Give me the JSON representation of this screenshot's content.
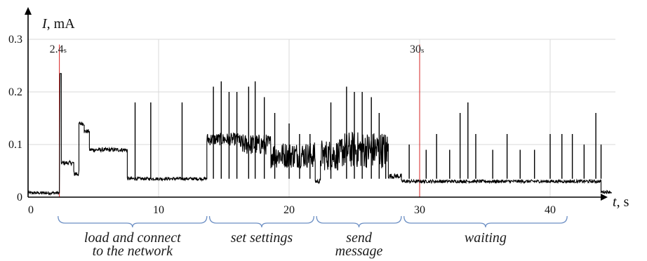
{
  "chart_data": {
    "type": "line",
    "title": "",
    "xlabel_var": "t",
    "xlabel_unit": ", s",
    "ylabel_var": "I",
    "ylabel_unit": ", mA",
    "xlim": [
      0,
      45
    ],
    "ylim": [
      0,
      0.3
    ],
    "x_ticks": [
      {
        "value": 0,
        "label": "0"
      },
      {
        "value": 10,
        "label": "10"
      },
      {
        "value": 20,
        "label": "20"
      },
      {
        "value": 30,
        "label": "30"
      },
      {
        "value": 40,
        "label": "40"
      }
    ],
    "y_ticks": [
      {
        "value": 0,
        "label": "0"
      },
      {
        "value": 0.1,
        "label": "0.1"
      },
      {
        "value": 0.2,
        "label": "0.2"
      },
      {
        "value": 0.3,
        "label": "0.3"
      }
    ],
    "grid": true,
    "markers": [
      {
        "x": 2.4,
        "num": "2.4",
        "unit": "s",
        "color": "#d62020"
      },
      {
        "x": 30,
        "num": "30",
        "unit": "s",
        "color": "#d62020"
      }
    ],
    "phases": [
      {
        "start": 2.3,
        "end": 13.7,
        "lines": [
          "load and connect",
          "to the network"
        ]
      },
      {
        "start": 13.9,
        "end": 21.9,
        "lines": [
          "set settings"
        ]
      },
      {
        "start": 22.1,
        "end": 28.6,
        "lines": [
          "send",
          "message"
        ]
      },
      {
        "start": 28.8,
        "end": 41.3,
        "lines": [
          "waiting"
        ]
      }
    ],
    "series": [
      {
        "line_color": "#000000",
        "segments": [
          {
            "x0": 0,
            "x1": 2.4,
            "base": 0.008,
            "noise": 0.003
          },
          {
            "x0": 2.45,
            "x1": 2.55,
            "base": 0.235,
            "noise": 0.0
          },
          {
            "x0": 2.55,
            "x1": 3.5,
            "base": 0.065,
            "noise": 0.004
          },
          {
            "x0": 3.5,
            "x1": 3.9,
            "base": 0.045,
            "noise": 0.006
          },
          {
            "x0": 3.9,
            "x1": 4.3,
            "base": 0.14,
            "noise": 0.004
          },
          {
            "x0": 4.3,
            "x1": 4.7,
            "base": 0.125,
            "noise": 0.004
          },
          {
            "x0": 4.7,
            "x1": 7.6,
            "base": 0.09,
            "noise": 0.004
          },
          {
            "x0": 7.6,
            "x1": 13.7,
            "base": 0.035,
            "noise": 0.003
          },
          {
            "x0": 13.7,
            "x1": 16.2,
            "base": 0.11,
            "noise": 0.012
          },
          {
            "x0": 16.2,
            "x1": 18.6,
            "base": 0.1,
            "noise": 0.02
          },
          {
            "x0": 18.6,
            "x1": 22.0,
            "base": 0.08,
            "noise": 0.025
          },
          {
            "x0": 22.0,
            "x1": 22.4,
            "base": 0.03,
            "noise": 0.004
          },
          {
            "x0": 22.4,
            "x1": 24.0,
            "base": 0.08,
            "noise": 0.03
          },
          {
            "x0": 24.0,
            "x1": 27.6,
            "base": 0.09,
            "noise": 0.035
          },
          {
            "x0": 27.6,
            "x1": 28.6,
            "base": 0.04,
            "noise": 0.005
          },
          {
            "x0": 28.6,
            "x1": 43.9,
            "base": 0.03,
            "noise": 0.003
          },
          {
            "x0": 43.9,
            "x1": 44.7,
            "base": 0.01,
            "noise": 0.003
          }
        ],
        "spikes": [
          {
            "x": 8.2,
            "y": 0.18
          },
          {
            "x": 9.4,
            "y": 0.18
          },
          {
            "x": 11.8,
            "y": 0.18
          },
          {
            "x": 14.2,
            "y": 0.21
          },
          {
            "x": 14.8,
            "y": 0.22
          },
          {
            "x": 15.4,
            "y": 0.2
          },
          {
            "x": 16.0,
            "y": 0.2
          },
          {
            "x": 16.9,
            "y": 0.21
          },
          {
            "x": 17.4,
            "y": 0.22
          },
          {
            "x": 18.1,
            "y": 0.19
          },
          {
            "x": 18.9,
            "y": 0.16
          },
          {
            "x": 20.0,
            "y": 0.14
          },
          {
            "x": 20.8,
            "y": 0.12
          },
          {
            "x": 21.6,
            "y": 0.12
          },
          {
            "x": 23.2,
            "y": 0.18
          },
          {
            "x": 24.4,
            "y": 0.21
          },
          {
            "x": 25.0,
            "y": 0.2
          },
          {
            "x": 25.6,
            "y": 0.2
          },
          {
            "x": 26.3,
            "y": 0.19
          },
          {
            "x": 26.9,
            "y": 0.16
          },
          {
            "x": 27.4,
            "y": 0.1
          },
          {
            "x": 29.2,
            "y": 0.1
          },
          {
            "x": 30.5,
            "y": 0.09
          },
          {
            "x": 31.3,
            "y": 0.12
          },
          {
            "x": 32.3,
            "y": 0.09
          },
          {
            "x": 33.1,
            "y": 0.16
          },
          {
            "x": 33.7,
            "y": 0.18
          },
          {
            "x": 34.3,
            "y": 0.12
          },
          {
            "x": 35.6,
            "y": 0.09
          },
          {
            "x": 36.7,
            "y": 0.12
          },
          {
            "x": 37.7,
            "y": 0.09
          },
          {
            "x": 38.8,
            "y": 0.09
          },
          {
            "x": 40.0,
            "y": 0.12
          },
          {
            "x": 40.9,
            "y": 0.12
          },
          {
            "x": 41.7,
            "y": 0.12
          },
          {
            "x": 42.6,
            "y": 0.1
          },
          {
            "x": 43.5,
            "y": 0.16
          },
          {
            "x": 43.9,
            "y": 0.1
          }
        ]
      }
    ]
  }
}
